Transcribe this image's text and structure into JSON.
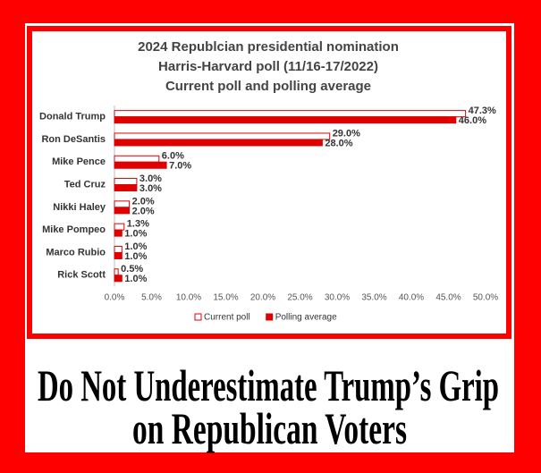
{
  "chart_data": {
    "type": "bar",
    "orientation": "horizontal",
    "title": [
      "2024 Republcian presidential nomination",
      "Harris-Harvard poll (11/16-17/2022)",
      "Current poll and polling average"
    ],
    "categories": [
      "Donald Trump",
      "Ron DeSantis",
      "Mike Pence",
      "Ted Cruz",
      "Nikki Haley",
      "Mike Pompeo",
      "Marco Rubio",
      "Rick Scott"
    ],
    "series": [
      {
        "name": "Current poll",
        "color": "#e00000",
        "fill": "#ffffff",
        "values": [
          47.3,
          29.0,
          6.0,
          3.0,
          2.0,
          1.3,
          1.0,
          0.5
        ],
        "value_labels": [
          "47.3%",
          "29.0%",
          "6.0%",
          "3.0%",
          "2.0%",
          "1.3%",
          "1.0%",
          "0.5%"
        ]
      },
      {
        "name": "Polling average",
        "color": "#e00000",
        "fill": "#e00000",
        "values": [
          46.0,
          28.0,
          7.0,
          3.0,
          2.0,
          1.0,
          1.0,
          1.0
        ],
        "value_labels": [
          "46.0%",
          "28.0%",
          "7.0%",
          "3.0%",
          "2.0%",
          "1.0%",
          "1.0%",
          "1.0%"
        ]
      }
    ],
    "xlim": [
      0,
      50
    ],
    "xticks": [
      {
        "value": 0,
        "label": "0.0%"
      },
      {
        "value": 5,
        "label": "5.0%"
      },
      {
        "value": 10,
        "label": "10.0%"
      },
      {
        "value": 15,
        "label": "15.0%"
      },
      {
        "value": 20,
        "label": "20.0%"
      },
      {
        "value": 25,
        "label": "25.0%"
      },
      {
        "value": 30,
        "label": "30.0%"
      },
      {
        "value": 35,
        "label": "35.0%"
      },
      {
        "value": 40,
        "label": "40.0%"
      },
      {
        "value": 45,
        "label": "45.0%"
      },
      {
        "value": 50,
        "label": "50.0%"
      }
    ],
    "grid": false,
    "legend": "bottom"
  },
  "headline": {
    "lines": [
      "Do Not Underestimate Trump’s Grip",
      "on Republican Voters"
    ]
  }
}
